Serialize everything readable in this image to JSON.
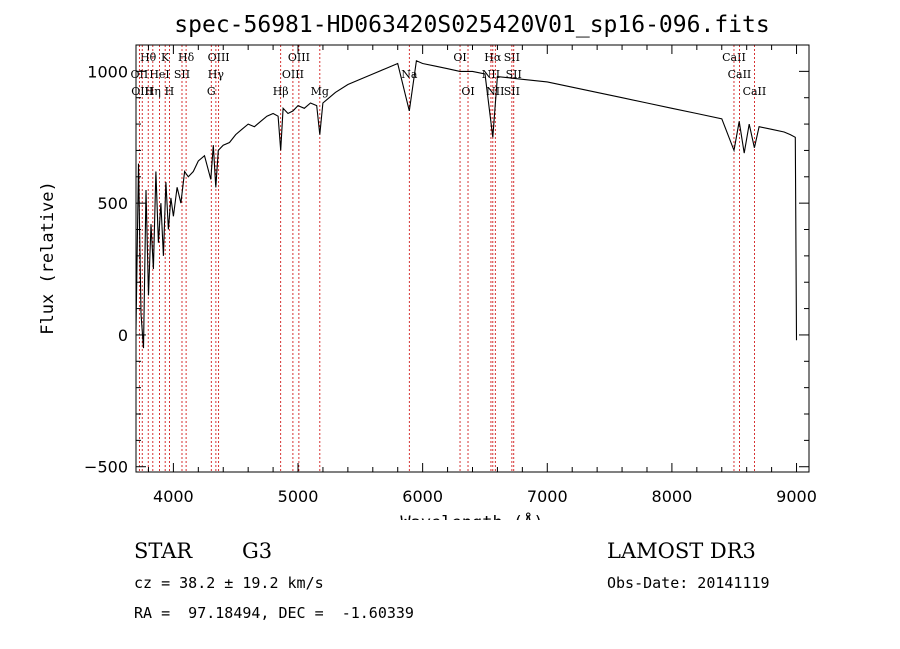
{
  "chart_data": {
    "type": "line",
    "title": "spec-56981-HD063420S025420V01_sp16-096.fits",
    "xlabel": "Wavelength (Å)",
    "ylabel": "Flux (relative)",
    "xlim": [
      3700,
      9100
    ],
    "ylim": [
      -520,
      1100
    ],
    "xticks": [
      4000,
      5000,
      6000,
      7000,
      8000,
      9000
    ],
    "xtick_labels": [
      "4000",
      "5000",
      "6000",
      "7000",
      "8000",
      "9000"
    ],
    "yticks": [
      -500,
      0,
      500,
      1000
    ],
    "ytick_labels": [
      "−500",
      "0",
      "500",
      "1000"
    ],
    "series": [
      {
        "name": "flux",
        "x": [
          3700,
          3720,
          3740,
          3760,
          3780,
          3800,
          3820,
          3840,
          3860,
          3880,
          3900,
          3920,
          3940,
          3960,
          3980,
          4000,
          4030,
          4060,
          4090,
          4120,
          4160,
          4200,
          4250,
          4300,
          4320,
          4340,
          4360,
          4400,
          4450,
          4500,
          4550,
          4600,
          4650,
          4700,
          4750,
          4800,
          4840,
          4861,
          4880,
          4920,
          4960,
          5000,
          5050,
          5100,
          5150,
          5175,
          5200,
          5250,
          5300,
          5400,
          5500,
          5600,
          5700,
          5800,
          5893,
          5950,
          6000,
          6100,
          6200,
          6300,
          6400,
          6500,
          6563,
          6600,
          6700,
          6800,
          7000,
          7200,
          7400,
          7600,
          7800,
          8000,
          8200,
          8400,
          8498,
          8540,
          8580,
          8620,
          8662,
          8700,
          8800,
          8900,
          8950,
          8990,
          9000
        ],
        "y": [
          20,
          650,
          80,
          -50,
          550,
          150,
          420,
          250,
          620,
          350,
          500,
          300,
          580,
          400,
          520,
          450,
          560,
          500,
          620,
          600,
          620,
          660,
          680,
          590,
          720,
          560,
          700,
          720,
          730,
          760,
          780,
          800,
          790,
          810,
          830,
          840,
          830,
          700,
          860,
          840,
          850,
          870,
          860,
          880,
          870,
          760,
          880,
          900,
          920,
          950,
          970,
          990,
          1010,
          1030,
          850,
          1040,
          1030,
          1020,
          1010,
          1000,
          1000,
          990,
          750,
          980,
          975,
          970,
          960,
          940,
          920,
          900,
          880,
          860,
          840,
          820,
          700,
          810,
          690,
          800,
          710,
          790,
          780,
          770,
          760,
          750,
          -20
        ]
      }
    ],
    "line_markers": [
      {
        "label": "Hθ",
        "x": 3798,
        "row": 1
      },
      {
        "label": "OII",
        "x": 3727,
        "row": 2
      },
      {
        "label": "OIII",
        "x": 3750,
        "row": 3
      },
      {
        "label": "K",
        "x": 3934,
        "row": 1
      },
      {
        "label": "HeI",
        "x": 3889,
        "row": 2
      },
      {
        "label": "SII",
        "x": 4069,
        "row": 2
      },
      {
        "label": "Hη",
        "x": 3835,
        "row": 3
      },
      {
        "label": "H",
        "x": 3968,
        "row": 3
      },
      {
        "label": "Hδ",
        "x": 4102,
        "row": 1
      },
      {
        "label": "OIII",
        "x": 4363,
        "row": 1
      },
      {
        "label": "Hγ",
        "x": 4341,
        "row": 2
      },
      {
        "label": "G",
        "x": 4304,
        "row": 3
      },
      {
        "label": "OIII",
        "x": 5007,
        "row": 1
      },
      {
        "label": "OIII",
        "x": 4959,
        "row": 2
      },
      {
        "label": "Hβ",
        "x": 4861,
        "row": 3
      },
      {
        "label": "Mg",
        "x": 5175,
        "row": 3
      },
      {
        "label": "Na",
        "x": 5893,
        "row": 2
      },
      {
        "label": "OI",
        "x": 6300,
        "row": 1
      },
      {
        "label": "OI",
        "x": 6364,
        "row": 3
      },
      {
        "label": "Hα",
        "x": 6563,
        "row": 1
      },
      {
        "label": "SII",
        "x": 6716,
        "row": 1
      },
      {
        "label": "NII",
        "x": 6548,
        "row": 2
      },
      {
        "label": "SII",
        "x": 6731,
        "row": 2
      },
      {
        "label": "NII",
        "x": 6583,
        "row": 3
      },
      {
        "label": "SII",
        "x": 6716,
        "row": 3
      },
      {
        "label": "CaII",
        "x": 8498,
        "row": 1
      },
      {
        "label": "CaII",
        "x": 8542,
        "row": 2
      },
      {
        "label": "CaII",
        "x": 8662,
        "row": 3
      }
    ]
  },
  "info": {
    "object_type": "STAR",
    "subclass": "G3",
    "survey": "LAMOST DR3",
    "cz": "cz = 38.2 ± 19.2 km/s",
    "obs_date": "Obs-Date: 20141119",
    "coords": "RA =  97.18494, DEC =  -1.60339"
  },
  "colors": {
    "marker_line": "#cc0000",
    "spectrum": "#000000"
  }
}
